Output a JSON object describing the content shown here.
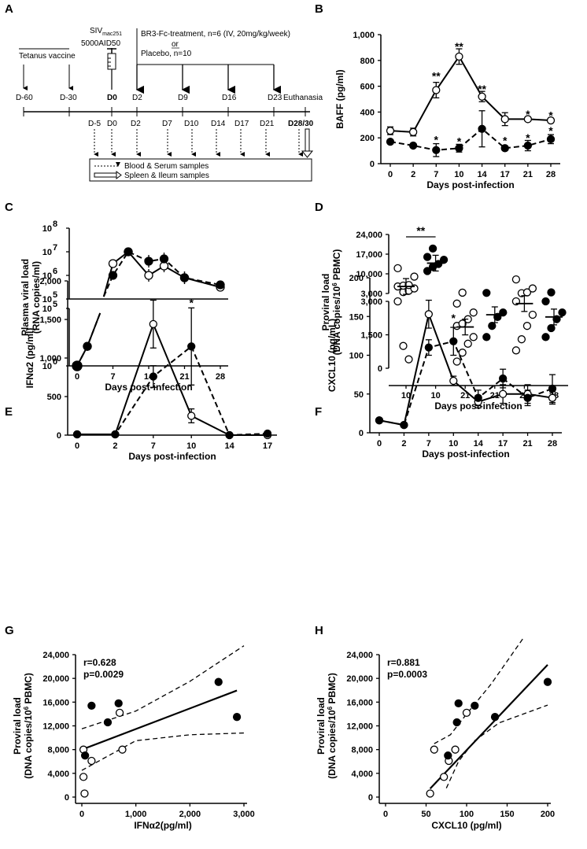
{
  "colors": {
    "ink": "#000000",
    "open_fill": "#ffffff",
    "closed_fill": "#000000"
  },
  "panel_labels": [
    "A",
    "B",
    "C",
    "D",
    "E",
    "F",
    "G",
    "H"
  ],
  "timeline": {
    "vaccine": "Tetanus vaccine",
    "siv_line1": "SIV",
    "siv_sub": "mac251",
    "siv_line2": "5000AID50",
    "treatment": "BR3-Fc-treatment, n=6 (IV, 20mg/kg/week)",
    "or": "or",
    "placebo": "Placebo, n=10",
    "top_days": [
      "D-60",
      "D-30",
      "D0",
      "D2",
      "D9",
      "D16",
      "D23"
    ],
    "euthanasia": "Euthanasia",
    "bottom_days": [
      "D-5",
      "D0",
      "D2",
      "D7",
      "D10",
      "D14",
      "D17",
      "D21",
      "D28/30"
    ],
    "legend_blood": "Blood & Serum samples",
    "legend_spleen": "Spleen & Ileum samples",
    "icon": "syringe-icon"
  },
  "chart_data": [
    {
      "panel": "B",
      "type": "line",
      "x": [
        0,
        2,
        7,
        10,
        14,
        17,
        21,
        28
      ],
      "x_tick_labels": [
        "0",
        "2",
        "7",
        "10",
        "14",
        "17",
        "21",
        "28"
      ],
      "xlabel": "Days post-infection",
      "ylabel": "BAFF (pg/ml)",
      "ylim": [
        0,
        1000
      ],
      "yticks": [
        0,
        200,
        400,
        600,
        800,
        1000
      ],
      "y_tick_labels": [
        "0",
        "200",
        "400",
        "600",
        "800",
        "1,000"
      ],
      "series": [
        {
          "name": "open",
          "marker": "open",
          "line": "solid",
          "values": [
            255,
            245,
            570,
            830,
            520,
            345,
            345,
            335
          ],
          "err": [
            30,
            30,
            60,
            60,
            40,
            50,
            15,
            15
          ]
        },
        {
          "name": "closed",
          "marker": "closed",
          "line": "dashed",
          "values": [
            170,
            140,
            105,
            120,
            270,
            120,
            140,
            190
          ],
          "err": [
            15,
            15,
            50,
            30,
            140,
            15,
            40,
            35
          ]
        }
      ],
      "annotations": [
        {
          "x": 7,
          "y": 680,
          "text": "**"
        },
        {
          "x": 10,
          "y": 910,
          "text": "**"
        },
        {
          "x": 14,
          "y": 580,
          "text": "**"
        },
        {
          "x": 21,
          "y": 385,
          "text": "*"
        },
        {
          "x": 28,
          "y": 375,
          "text": "*"
        },
        {
          "x": 7,
          "y": 185,
          "text": "*"
        },
        {
          "x": 10,
          "y": 175,
          "text": "*"
        },
        {
          "x": 17,
          "y": 180,
          "text": "*"
        },
        {
          "x": 21,
          "y": 200,
          "text": "*"
        },
        {
          "x": 28,
          "y": 255,
          "text": "*"
        }
      ]
    },
    {
      "panel": "C",
      "type": "line",
      "x": [
        0,
        2,
        7,
        10,
        14,
        17,
        21,
        28
      ],
      "x_tick_labels": [
        "0",
        "7",
        "14",
        "21",
        "28"
      ],
      "xlabel": "Days post-infection",
      "ylabel": "Plasma viral load (RNA copies/ml)",
      "upper_yticks": [
        "10^8",
        "10^7",
        "10^6",
        "10^5"
      ],
      "lower_yticks": [
        "10^5",
        "10^0"
      ],
      "series": [
        {
          "name": "open",
          "marker": "open",
          "line": "solid",
          "log_values": [
            0,
            1.7,
            6.5,
            7.0,
            6.0,
            6.4,
            5.9,
            5.5
          ]
        },
        {
          "name": "closed",
          "marker": "closed",
          "line": "dashed",
          "log_values": [
            0,
            1.7,
            6.0,
            7.0,
            6.6,
            6.7,
            5.9,
            5.6
          ]
        }
      ]
    },
    {
      "panel": "D",
      "type": "scatter",
      "categories": [
        "10",
        "10",
        "21",
        "21",
        "28",
        "28"
      ],
      "xlabel": "Days post-infection",
      "ylabel": "Proviral load (DNA copies/10^6 PBMC)",
      "y_tick_labels": [
        "0",
        "1,500",
        "3,000",
        "3,000",
        "10,000",
        "17,000",
        "24,000"
      ],
      "groups": [
        {
          "marker": "open",
          "mean": 5500,
          "points": [
            3000,
            3500,
            4000,
            4800,
            5500,
            5800,
            6000,
            9000,
            12000,
            1000,
            400
          ]
        },
        {
          "marker": "closed",
          "mean": 13800,
          "points": [
            11000,
            12500,
            13500,
            15000,
            16000,
            19000
          ]
        },
        {
          "marker": "open",
          "mean": 1850,
          "points": [
            300,
            700,
            1100,
            1400,
            1900,
            2000,
            2200,
            2500,
            2900,
            3300
          ]
        },
        {
          "marker": "closed",
          "mean": 2400,
          "points": [
            1400,
            1900,
            2300,
            2500,
            3200
          ]
        },
        {
          "marker": "open",
          "mean": 2900,
          "points": [
            800,
            1300,
            1900,
            2400,
            3000,
            3100,
            3400,
            4800,
            8000
          ]
        },
        {
          "marker": "closed",
          "mean": 2300,
          "points": [
            1400,
            1800,
            2200,
            2500,
            3000,
            3400
          ]
        }
      ],
      "annotations": [
        {
          "text": "**"
        }
      ]
    },
    {
      "panel": "E",
      "type": "line",
      "x": [
        0,
        2,
        7,
        10,
        14,
        17
      ],
      "x_tick_labels": [
        "0",
        "2",
        "7",
        "10",
        "14",
        "17"
      ],
      "xlabel": "Days post-infection",
      "ylabel": "IFNα2 (pg/ml)",
      "ylim": [
        0,
        2000
      ],
      "y_tick_labels": [
        "0",
        "500",
        "1,000",
        "1,500",
        "2,000"
      ],
      "series": [
        {
          "name": "open",
          "marker": "open",
          "line": "solid",
          "values": [
            10,
            10,
            1440,
            250,
            0,
            0
          ],
          "err": [
            0,
            0,
            310,
            90,
            0,
            0
          ]
        },
        {
          "name": "closed",
          "marker": "closed",
          "line": "dashed",
          "values": [
            10,
            10,
            760,
            1150,
            0,
            20
          ],
          "err": [
            0,
            0,
            140,
            500,
            0,
            0
          ]
        }
      ],
      "annotations": [
        {
          "x": 10,
          "y": 1720,
          "text": "*"
        }
      ]
    },
    {
      "panel": "F",
      "type": "line",
      "x": [
        0,
        2,
        7,
        10,
        14,
        17,
        21,
        28
      ],
      "x_tick_labels": [
        "0",
        "2",
        "7",
        "10",
        "14",
        "17",
        "21",
        "28"
      ],
      "xlabel": "Days post-infection",
      "ylabel": "CXCL10 (pg/mL)",
      "ylim": [
        0,
        200
      ],
      "y_tick_labels": [
        "0",
        "50",
        "100",
        "150",
        "200"
      ],
      "series": [
        {
          "name": "open",
          "marker": "open",
          "line": "solid",
          "values": [
            16,
            10,
            153,
            67,
            40,
            50,
            50,
            45
          ],
          "err": [
            0,
            0,
            18,
            6,
            8,
            12,
            12,
            8
          ]
        },
        {
          "name": "closed",
          "marker": "closed",
          "line": "dashed",
          "values": [
            16,
            10,
            110,
            118,
            45,
            70,
            45,
            57
          ],
          "err": [
            0,
            0,
            10,
            18,
            10,
            12,
            10,
            18
          ]
        }
      ],
      "annotations": [
        {
          "x": 10,
          "y": 148,
          "text": "*"
        }
      ]
    },
    {
      "panel": "G",
      "type": "scatter",
      "xlabel": "IFNα2(pg/ml)",
      "ylabel": "Proviral load (DNA copies/10^6 PBMC)",
      "xlim": [
        0,
        3000
      ],
      "ylim": [
        0,
        24000
      ],
      "x_tick_labels": [
        "0",
        "1,000",
        "2,000",
        "3,000"
      ],
      "y_tick_labels": [
        "0",
        "4,000",
        "8,000",
        "12,000",
        "16,000",
        "20,000",
        "24,000"
      ],
      "r": "r=0.628",
      "p": "p=0.0029",
      "points_open": [
        [
          30,
          8000
        ],
        [
          50,
          600
        ],
        [
          30,
          3400
        ],
        [
          180,
          6100
        ],
        [
          700,
          14200
        ],
        [
          750,
          8000
        ]
      ],
      "points_closed": [
        [
          60,
          7000
        ],
        [
          180,
          15400
        ],
        [
          480,
          12600
        ],
        [
          680,
          15800
        ],
        [
          2530,
          19400
        ],
        [
          2870,
          13500
        ]
      ],
      "fit": {
        "intercept": 8000,
        "slope": 3.47
      },
      "ci_upper": [
        [
          0,
          11500
        ],
        [
          1000,
          14500
        ],
        [
          2000,
          19500
        ],
        [
          3000,
          25500
        ]
      ],
      "ci_lower": [
        [
          0,
          4500
        ],
        [
          1000,
          9500
        ],
        [
          2000,
          10500
        ],
        [
          3000,
          10800
        ]
      ]
    },
    {
      "panel": "H",
      "type": "scatter",
      "xlabel": "CXCL10 (pg/ml)",
      "ylabel": "Proviral load (DNA copies/10^6 PBMC)",
      "xlim": [
        0,
        200
      ],
      "ylim": [
        0,
        24000
      ],
      "x_tick_labels": [
        "0",
        "50",
        "100",
        "150",
        "200"
      ],
      "y_tick_labels": [
        "0",
        "4,000",
        "8,000",
        "12,000",
        "16,000",
        "20,000",
        "24,000"
      ],
      "r": "r=0.881",
      "p": "p=0.0003",
      "points_open": [
        [
          55,
          600
        ],
        [
          60,
          8000
        ],
        [
          72,
          3400
        ],
        [
          78,
          6100
        ],
        [
          86,
          8000
        ],
        [
          100,
          14200
        ]
      ],
      "points_closed": [
        [
          77,
          7000
        ],
        [
          88,
          12600
        ],
        [
          90,
          15800
        ],
        [
          110,
          15400
        ],
        [
          135,
          13500
        ],
        [
          200,
          19400
        ]
      ],
      "fit": {
        "intercept": -6500,
        "slope": 144
      },
      "ci_upper": [
        [
          60,
          9000
        ],
        [
          80,
          10500
        ],
        [
          100,
          14000
        ],
        [
          130,
          19000
        ],
        [
          170,
          26800
        ]
      ],
      "ci_lower": [
        [
          75,
          1500
        ],
        [
          90,
          6000
        ],
        [
          110,
          9500
        ],
        [
          140,
          12500
        ],
        [
          200,
          15500
        ]
      ]
    }
  ]
}
